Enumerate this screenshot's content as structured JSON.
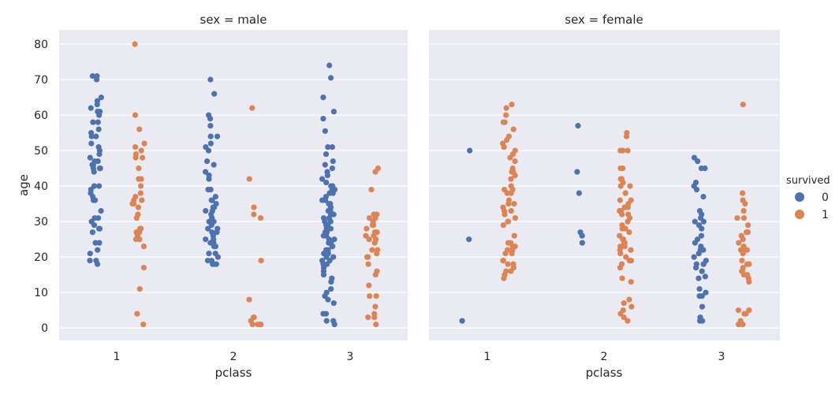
{
  "chart_data": [
    {
      "type": "scatter",
      "subtype": "strip",
      "title": "sex = male",
      "xlabel": "pclass",
      "ylabel": "age",
      "categories": [
        "1",
        "2",
        "3"
      ],
      "ylim": [
        -3.5,
        84
      ],
      "yticks": [
        0,
        10,
        20,
        30,
        40,
        50,
        60,
        70,
        80
      ],
      "grid": true,
      "series": [
        {
          "name": "0",
          "color": "#4C72B0",
          "points": {
            "1": [
              71,
              71,
              70,
              65,
              64,
              63,
              62,
              61,
              61,
              60,
              58,
              58,
              56,
              55,
              54,
              54,
              52,
              51,
              50,
              49,
              48,
              47,
              47,
              46,
              46,
              45,
              45,
              45,
              44,
              40,
              40,
              39,
              38,
              37,
              36,
              36,
              33,
              31,
              31,
              30,
              29,
              28,
              28,
              27,
              24,
              24,
              22,
              21,
              19,
              19,
              18
            ],
            "2": [
              70,
              66,
              60,
              59,
              57,
              54,
              54,
              52,
              51,
              50,
              47,
              46,
              44,
              43,
              42,
              39,
              39,
              37,
              36,
              36,
              35,
              34,
              34,
              33,
              33,
              32,
              31,
              30,
              30,
              29,
              28,
              28,
              27,
              27,
              26,
              25,
              25,
              24,
              24,
              23,
              23,
              21,
              21,
              20,
              19,
              19,
              18,
              18,
              18
            ],
            "3": [
              74,
              70.5,
              65,
              61,
              59,
              55.5,
              51,
              51,
              49,
              47,
              46,
              45,
              44,
              43,
              42,
              41,
              40,
              40,
              39,
              39,
              38,
              38,
              37,
              36,
              36,
              35,
              35,
              34,
              34,
              33,
              33,
              32,
              32,
              31,
              31,
              30,
              30,
              29,
              29,
              28,
              28,
              27,
              27,
              26,
              26,
              25,
              25,
              24,
              24,
              23,
              23,
              22,
              22,
              21,
              21,
              20,
              20,
              19,
              19,
              18,
              18,
              17,
              16,
              15,
              14,
              13,
              11,
              10,
              9,
              8,
              7,
              4,
              4,
              2,
              2,
              1
            ]
          }
        },
        {
          "name": "1",
          "color": "#DD8452",
          "points": {
            "1": [
              80,
              60,
              56,
              52,
              51,
              50,
              49,
              48,
              48,
              45,
              42,
              42,
              40,
              38,
              37,
              36,
              36,
              35,
              35,
              34,
              32,
              31,
              28,
              28,
              27,
              27,
              27,
              26,
              25,
              25,
              23,
              17,
              11,
              4,
              1
            ],
            "2": [
              62,
              42,
              34,
              32,
              31,
              19,
              8,
              3,
              3,
              2,
              1,
              1,
              1,
              1
            ],
            "3": [
              45,
              44,
              39,
              32,
              32,
              31,
              31,
              30,
              29,
              29,
              28,
              27,
              27,
              26,
              26,
              25,
              25,
              24,
              22,
              22,
              21,
              20,
              20,
              18,
              16,
              15,
              12,
              9,
              9,
              6,
              4,
              3,
              3,
              1
            ]
          }
        }
      ]
    },
    {
      "type": "scatter",
      "subtype": "strip",
      "title": "sex = female",
      "xlabel": "pclass",
      "ylabel": "",
      "categories": [
        "1",
        "2",
        "3"
      ],
      "ylim": [
        -3.5,
        84
      ],
      "yticks": [
        0,
        10,
        20,
        30,
        40,
        50,
        60,
        70,
        80
      ],
      "grid": true,
      "series": [
        {
          "name": "0",
          "color": "#4C72B0",
          "points": {
            "1": [
              50,
              25,
              2
            ],
            "2": [
              57,
              44,
              38,
              27,
              26,
              24
            ],
            "3": [
              48,
              47,
              45,
              45,
              41,
              40,
              39,
              37,
              33,
              32,
              31,
              30,
              30,
              29,
              28,
              26,
              25,
              24,
              23,
              22,
              22,
              21,
              20,
              19,
              18,
              18,
              18,
              17,
              16,
              14.5,
              14,
              11,
              10,
              9,
              9,
              6,
              3,
              2,
              2
            ]
          }
        },
        {
          "name": "1",
          "color": "#DD8452",
          "points": {
            "1": [
              63,
              62,
              60,
              58,
              58,
              56,
              54,
              53,
              52,
              51,
              50,
              49,
              48,
              47,
              45,
              44,
              44,
              43,
              42,
              40,
              39,
              39,
              38,
              38,
              36,
              35,
              35,
              34,
              33,
              33,
              32,
              31,
              30,
              30,
              29,
              26,
              24,
              24,
              23,
              23,
              22,
              22,
              21,
              21,
              19,
              19,
              18,
              18,
              17,
              16,
              16,
              15,
              14
            ],
            "2": [
              55,
              54,
              50,
              50,
              50,
              45,
              45,
              42,
              42,
              41,
              40,
              40,
              38,
              36,
              36,
              35,
              34,
              34,
              33,
              33,
              32,
              32,
              31,
              30,
              29,
              28,
              28,
              27,
              26,
              25,
              25,
              24,
              24,
              23,
              23,
              22,
              22,
              21,
              20,
              19,
              19,
              18,
              17,
              14,
              13,
              8,
              7,
              6,
              5,
              4,
              3,
              2
            ],
            "3": [
              63,
              38,
              36,
              35,
              33,
              31,
              31,
              29,
              27,
              27,
              26,
              25,
              24,
              23,
              22,
              22,
              22,
              21,
              19,
              18,
              18,
              17,
              16,
              16,
              15,
              15,
              14,
              13,
              5,
              5,
              4,
              4,
              2,
              1,
              1
            ]
          }
        }
      ]
    }
  ],
  "legend": {
    "title": "survived",
    "placement": "right",
    "entries": [
      {
        "label": "0",
        "color": "#4C72B0"
      },
      {
        "label": "1",
        "color": "#DD8452"
      }
    ]
  },
  "style": {
    "panel_bg": "#EAEAF2",
    "grid_color": "#FFFFFF"
  }
}
